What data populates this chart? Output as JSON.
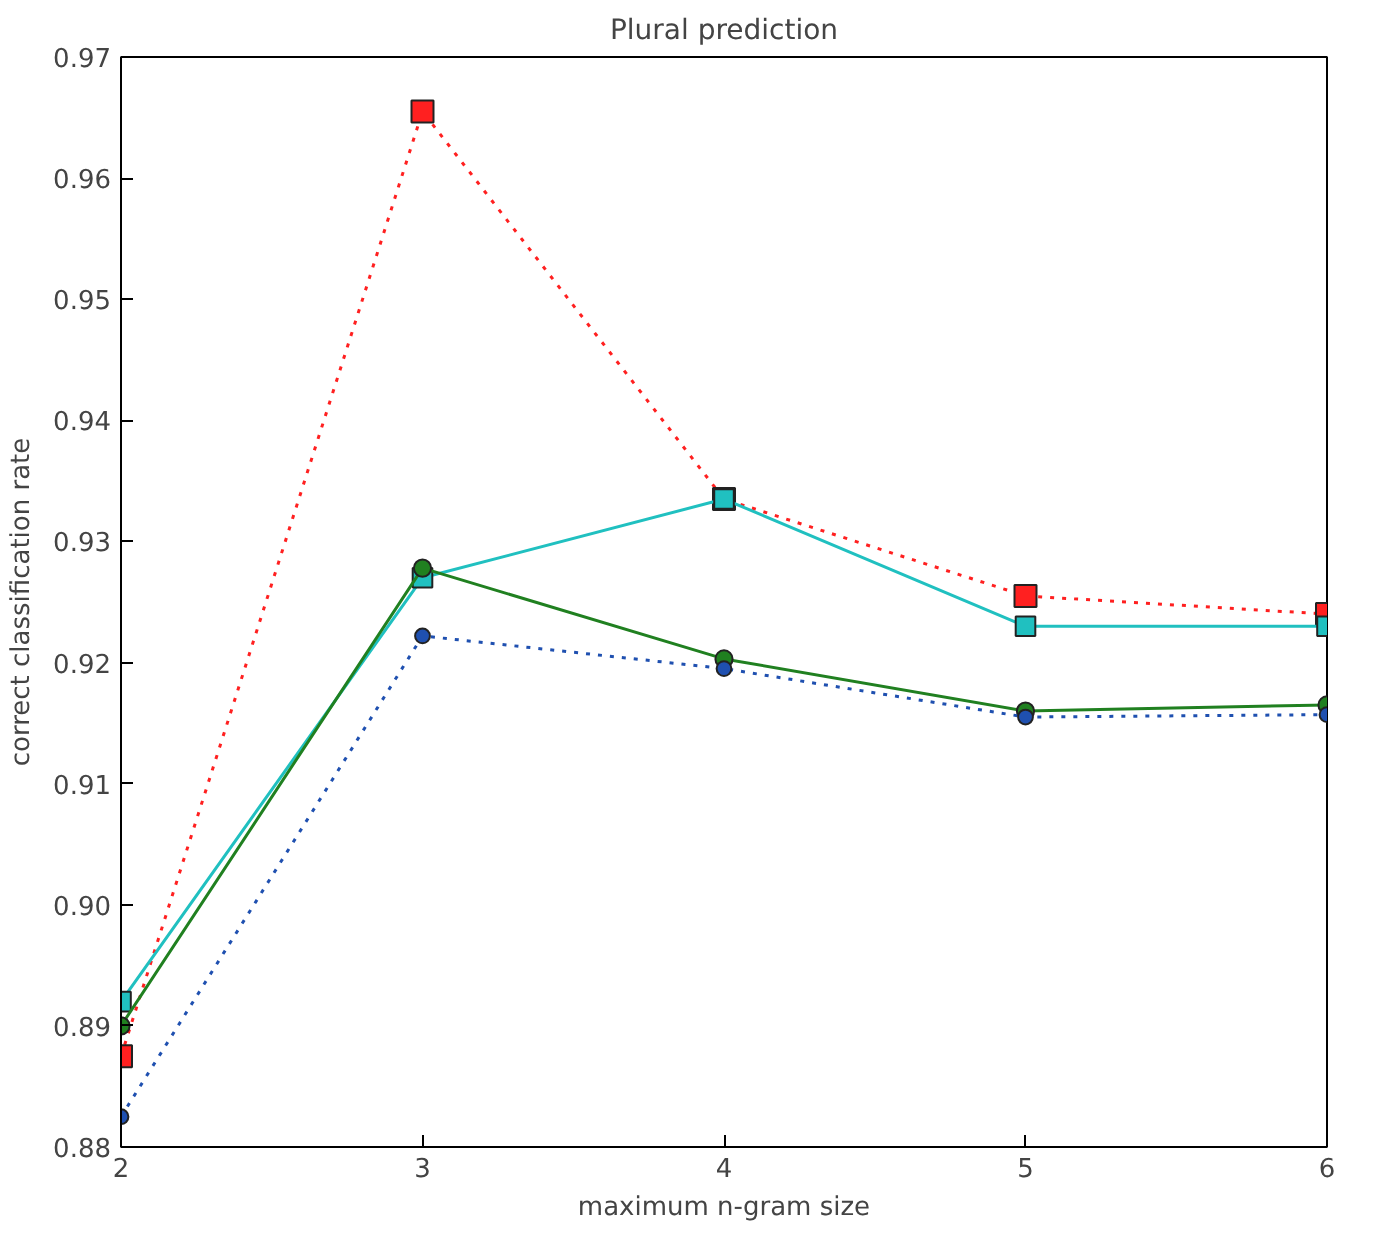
{
  "chart_data": {
    "type": "line",
    "title": "Plural prediction",
    "xlabel": "maximum n-gram size",
    "ylabel": "correct classification rate",
    "x": [
      2,
      3,
      4,
      5,
      6
    ],
    "series": [
      {
        "color": "#ff2020",
        "marker": "square",
        "line_style": "dotted",
        "values": [
          0.8875,
          0.9655,
          0.9335,
          0.9255,
          0.924
        ]
      },
      {
        "color": "#20c0c0",
        "marker": "square",
        "line_style": "solid",
        "values": [
          0.892,
          0.927,
          0.9335,
          0.923,
          0.923
        ]
      },
      {
        "color": "#208020",
        "marker": "circle",
        "line_style": "solid",
        "values": [
          0.89,
          0.9278,
          0.9203,
          0.916,
          0.9165
        ]
      },
      {
        "color": "#1f50b0",
        "marker": "circle",
        "line_style": "dotted",
        "values": [
          0.8825,
          0.9222,
          0.9195,
          0.9155,
          0.9157
        ]
      }
    ],
    "xlim": [
      2,
      6
    ],
    "ylim": [
      0.88,
      0.97
    ],
    "xticks": [
      2,
      3,
      4,
      5,
      6
    ],
    "yticks": [
      0.88,
      0.89,
      {
        "value": 0.9,
        "label": "0.90"
      },
      0.91,
      0.92,
      0.93,
      0.94,
      0.95,
      0.96,
      0.97
    ],
    "grid": false
  }
}
